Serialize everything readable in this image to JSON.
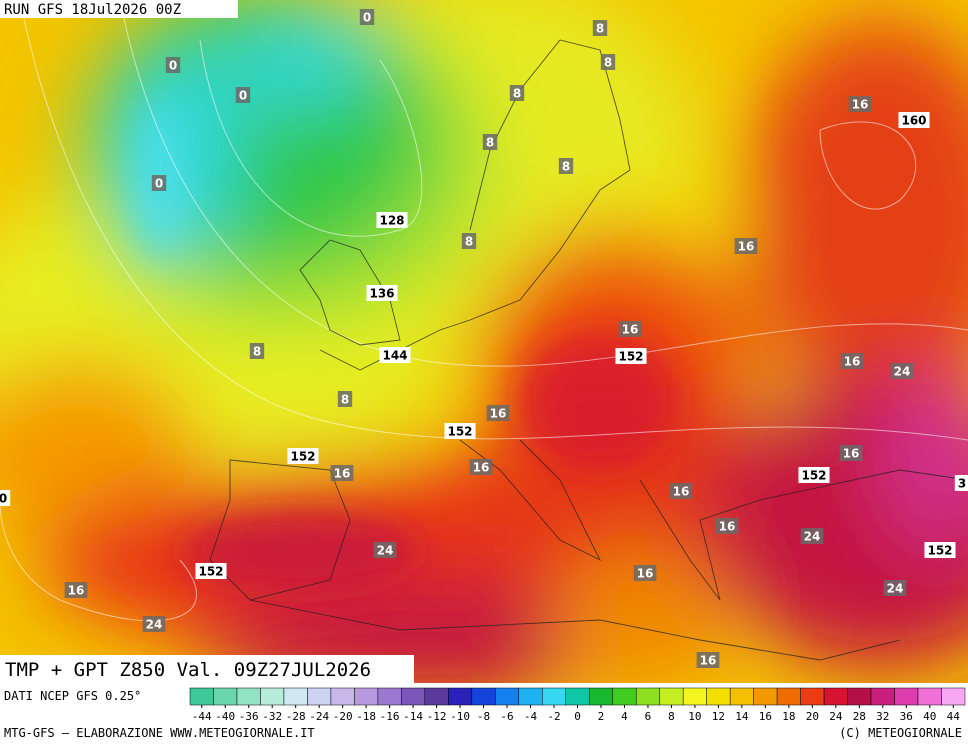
{
  "header": {
    "run": "RUN GFS 18Jul2026 00Z"
  },
  "map": {
    "labels": [
      "0",
      "0",
      "0",
      "0",
      "8",
      "8",
      "8",
      "8",
      "8",
      "8",
      "8",
      "8",
      "128",
      "136",
      "144",
      "152",
      "152",
      "152",
      "152",
      "152",
      "152",
      "160",
      "16",
      "16",
      "16",
      "16",
      "16",
      "16",
      "16",
      "16",
      "16",
      "16",
      "16",
      "16",
      "16",
      "24",
      "24",
      "24",
      "24",
      "24",
      "0",
      "3"
    ]
  },
  "caption": "TMP + GPT Z850 Val. 09Z27JUL2026",
  "footer": {
    "source": "DATI NCEP GFS 0.25°",
    "credit": "MTG-GFS – ELABORAZIONE WWW.METEOGIORNALE.IT",
    "copyright": "(C) METEOGIORNALE"
  },
  "scale": {
    "ticks": [
      -44,
      -40,
      -36,
      -32,
      -28,
      -24,
      -20,
      -18,
      -16,
      -14,
      -12,
      -10,
      -8,
      -6,
      -4,
      -2,
      0,
      2,
      4,
      6,
      8,
      10,
      12,
      14,
      16,
      18,
      20,
      24,
      28,
      32,
      36,
      40,
      44
    ],
    "colors": [
      "#3fc89a",
      "#6ad6b0",
      "#92e2c6",
      "#b6ecda",
      "#cfe8f2",
      "#cdd4f2",
      "#c8b8ea",
      "#b89ae0",
      "#9c78d0",
      "#7c56b8",
      "#5a3a9c",
      "#2a22b8",
      "#1444dc",
      "#1480f0",
      "#1eb2f2",
      "#36d8f2",
      "#10c8a8",
      "#18b830",
      "#40cc20",
      "#8ce020",
      "#c4ee20",
      "#f4f420",
      "#f4e000",
      "#f4c000",
      "#f49800",
      "#f06c00",
      "#ec3c14",
      "#d41430",
      "#b41048",
      "#c8207c",
      "#dc3cae",
      "#f070d8",
      "#f8a8f0"
    ]
  }
}
